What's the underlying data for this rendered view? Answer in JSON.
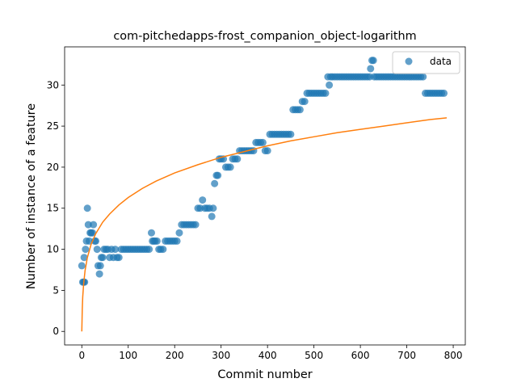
{
  "chart_data": {
    "type": "scatter",
    "title": "com-pitchedapps-frost_companion_object-logarithm",
    "xlabel": "Commit number",
    "ylabel": "Number of instance of a feature",
    "xlim": [
      -37,
      826
    ],
    "ylim": [
      -1.65,
      34.65
    ],
    "xticks": [
      0,
      100,
      200,
      300,
      400,
      500,
      600,
      700,
      800
    ],
    "yticks": [
      0,
      5,
      10,
      15,
      20,
      25,
      30
    ],
    "grid": false,
    "legend_position": "top-right",
    "series": [
      {
        "name": "data",
        "kind": "scatter",
        "color": "#1f77b4",
        "x": [
          0,
          2,
          4,
          5,
          6,
          8,
          10,
          12,
          14,
          16,
          18,
          20,
          23,
          25,
          28,
          30,
          33,
          35,
          38,
          40,
          42,
          45,
          48,
          52,
          56,
          60,
          64,
          68,
          72,
          76,
          80,
          85,
          90,
          95,
          100,
          105,
          110,
          115,
          120,
          125,
          130,
          135,
          140,
          145,
          150,
          152,
          155,
          158,
          162,
          166,
          170,
          175,
          180,
          185,
          190,
          195,
          200,
          205,
          210,
          215,
          220,
          225,
          230,
          235,
          240,
          245,
          250,
          255,
          260,
          265,
          270,
          275,
          280,
          283,
          286,
          290,
          293,
          296,
          300,
          305,
          310,
          315,
          320,
          325,
          330,
          335,
          340,
          345,
          350,
          355,
          360,
          365,
          370,
          375,
          380,
          385,
          390,
          395,
          400,
          405,
          410,
          415,
          420,
          425,
          430,
          435,
          440,
          445,
          450,
          455,
          460,
          465,
          470,
          475,
          480,
          485,
          490,
          495,
          500,
          505,
          510,
          515,
          520,
          525,
          530,
          533,
          536,
          540,
          545,
          550,
          555,
          560,
          565,
          570,
          575,
          580,
          585,
          590,
          595,
          600,
          605,
          610,
          615,
          620,
          622,
          625,
          628,
          630,
          635,
          640,
          645,
          650,
          655,
          660,
          665,
          670,
          675,
          680,
          685,
          690,
          695,
          700,
          705,
          710,
          715,
          720,
          725,
          730,
          735,
          740,
          745,
          750,
          755,
          760,
          765,
          770,
          775,
          780
        ],
        "y": [
          8,
          6,
          6,
          9,
          6,
          10,
          11,
          15,
          13,
          11,
          12,
          12,
          12,
          13,
          11,
          11,
          10,
          8,
          7,
          8,
          9,
          9,
          10,
          10,
          10,
          9,
          10,
          9,
          10,
          9,
          9,
          10,
          10,
          10,
          10,
          10,
          10,
          10,
          10,
          10,
          10,
          10,
          10,
          10,
          12,
          11,
          11,
          11,
          11,
          10,
          10,
          10,
          11,
          11,
          11,
          11,
          11,
          11,
          12,
          13,
          13,
          13,
          13,
          13,
          13,
          13,
          15,
          15,
          16,
          15,
          15,
          15,
          14,
          15,
          18,
          19,
          19,
          21,
          21,
          21,
          20,
          20,
          20,
          21,
          21,
          21,
          22,
          22,
          22,
          22,
          22,
          22,
          22,
          23,
          23,
          23,
          23,
          22,
          22,
          24,
          24,
          24,
          24,
          24,
          24,
          24,
          24,
          24,
          24,
          27,
          27,
          27,
          27,
          28,
          28,
          29,
          29,
          29,
          29,
          29,
          29,
          29,
          29,
          29,
          31,
          30,
          31,
          31,
          31,
          31,
          31,
          31,
          31,
          31,
          31,
          31,
          31,
          31,
          31,
          31,
          31,
          31,
          31,
          31,
          32,
          33,
          33,
          31,
          31,
          31,
          31,
          31,
          31,
          31,
          31,
          31,
          31,
          31,
          31,
          31,
          31,
          31,
          31,
          31,
          31,
          31,
          31,
          31,
          31,
          29,
          29,
          29,
          29,
          29,
          29,
          29,
          29,
          29
        ]
      },
      {
        "name": "",
        "kind": "line",
        "color": "#ff7f0e",
        "x": [
          0,
          1,
          2,
          4,
          7,
          12,
          20,
          30,
          45,
          60,
          80,
          100,
          130,
          160,
          200,
          250,
          300,
          350,
          400,
          450,
          500,
          550,
          600,
          650,
          700,
          750,
          786
        ],
        "y": [
          0,
          2.7,
          4.2,
          5.8,
          7.4,
          9.0,
          10.6,
          11.9,
          13.3,
          14.3,
          15.4,
          16.3,
          17.4,
          18.3,
          19.3,
          20.3,
          21.2,
          21.9,
          22.6,
          23.2,
          23.7,
          24.2,
          24.6,
          25.0,
          25.4,
          25.8,
          26.0
        ]
      }
    ]
  }
}
